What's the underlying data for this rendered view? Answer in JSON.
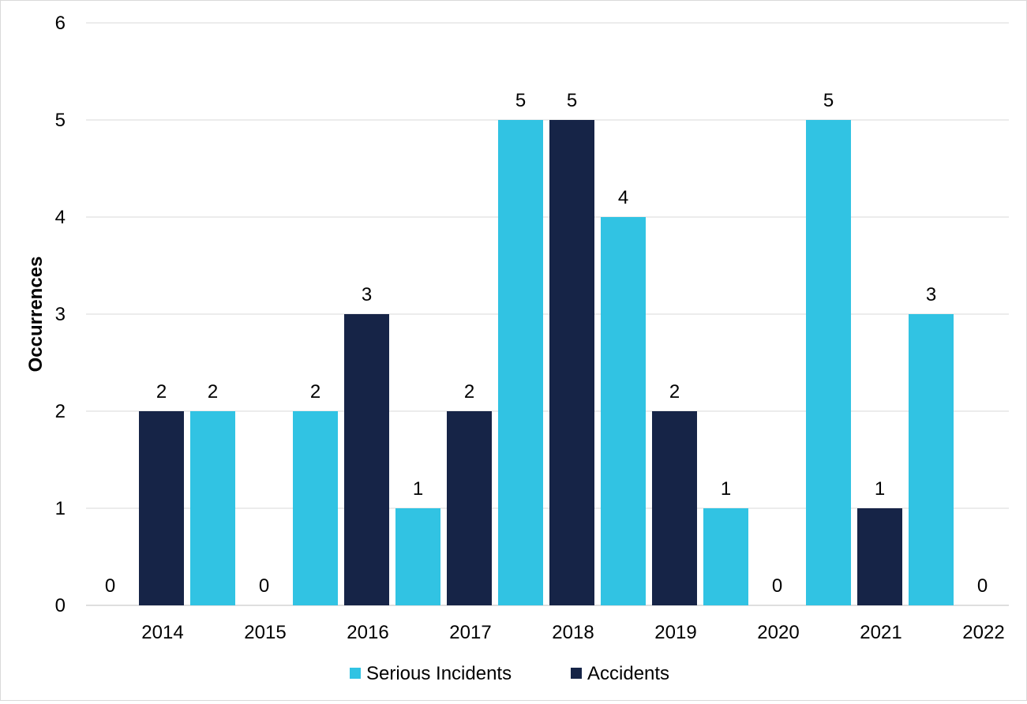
{
  "chart_data": {
    "type": "bar",
    "title": "",
    "xlabel": "",
    "ylabel": "Occurrences",
    "ylim": [
      0,
      6
    ],
    "yticks": [
      0,
      1,
      2,
      3,
      4,
      5,
      6
    ],
    "grid": true,
    "legend_position": "bottom",
    "categories": [
      "2014",
      "2015",
      "2016",
      "2017",
      "2018",
      "2019",
      "2020",
      "2021",
      "2022"
    ],
    "series": [
      {
        "name": "Serious Incidents",
        "color": "#31c3e3",
        "values": [
          0,
          2,
          2,
          1,
          5,
          4,
          1,
          5,
          3
        ]
      },
      {
        "name": "Accidents",
        "color": "#162447",
        "values": [
          2,
          0,
          3,
          2,
          5,
          2,
          0,
          1,
          0
        ]
      }
    ],
    "data_labels": true
  }
}
